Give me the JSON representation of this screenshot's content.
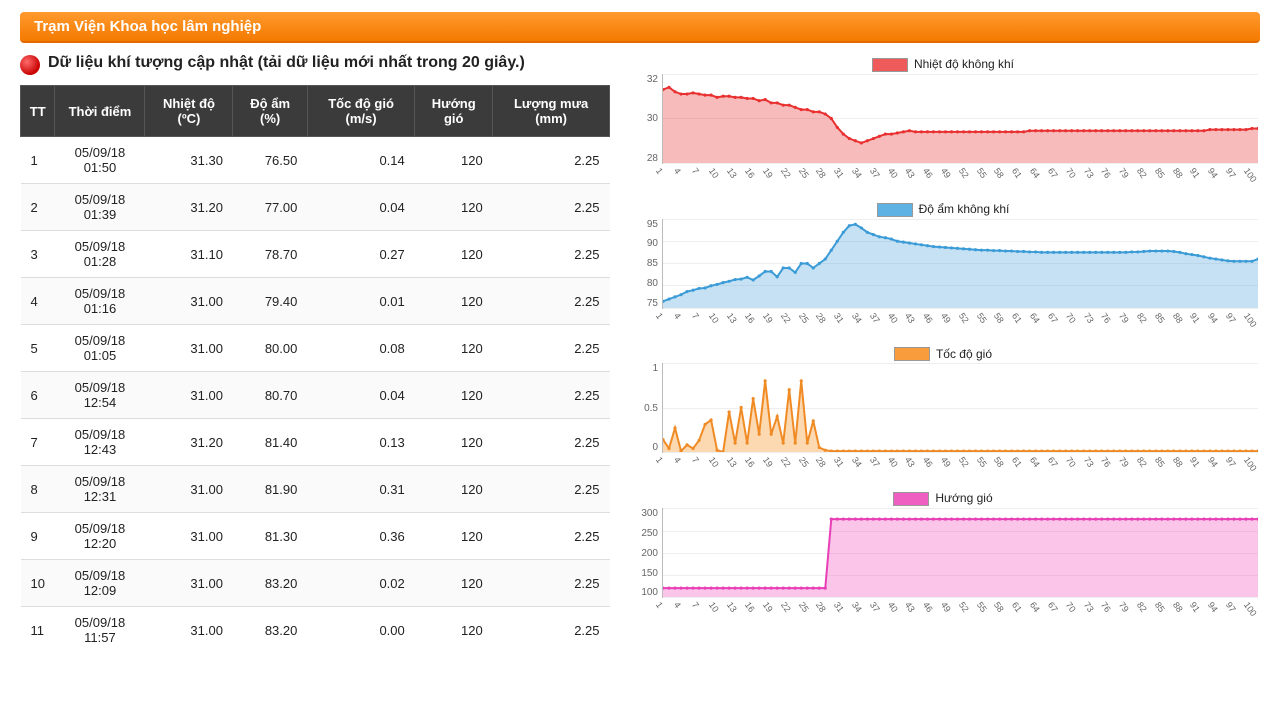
{
  "header": {
    "title": "Trạm Viện Khoa học lâm nghiệp"
  },
  "main": {
    "title": "Dữ liệu khí tượng cập nhật (tải dữ liệu mới nhất trong 20 giây.)"
  },
  "table": {
    "columns": [
      "TT",
      "Thời điểm",
      "Nhiệt độ (ºC)",
      "Độ ẩm (%)",
      "Tốc độ gió (m/s)",
      "Hướng gió",
      "Lượng mưa (mm)"
    ],
    "rows": [
      [
        "1",
        "05/09/18 01:50",
        "31.30",
        "76.50",
        "0.14",
        "120",
        "2.25"
      ],
      [
        "2",
        "05/09/18 01:39",
        "31.20",
        "77.00",
        "0.04",
        "120",
        "2.25"
      ],
      [
        "3",
        "05/09/18 01:28",
        "31.10",
        "78.70",
        "0.27",
        "120",
        "2.25"
      ],
      [
        "4",
        "05/09/18 01:16",
        "31.00",
        "79.40",
        "0.01",
        "120",
        "2.25"
      ],
      [
        "5",
        "05/09/18 01:05",
        "31.00",
        "80.00",
        "0.08",
        "120",
        "2.25"
      ],
      [
        "6",
        "05/09/18 12:54",
        "31.00",
        "80.70",
        "0.04",
        "120",
        "2.25"
      ],
      [
        "7",
        "05/09/18 12:43",
        "31.20",
        "81.40",
        "0.13",
        "120",
        "2.25"
      ],
      [
        "8",
        "05/09/18 12:31",
        "31.00",
        "81.90",
        "0.31",
        "120",
        "2.25"
      ],
      [
        "9",
        "05/09/18 12:20",
        "31.00",
        "81.30",
        "0.36",
        "120",
        "2.25"
      ],
      [
        "10",
        "05/09/18 12:09",
        "31.00",
        "83.20",
        "0.02",
        "120",
        "2.25"
      ],
      [
        "11",
        "05/09/18 11:57",
        "31.00",
        "83.20",
        "0.00",
        "120",
        "2.25"
      ]
    ]
  },
  "xaxis_ticks": [
    1,
    4,
    7,
    10,
    13,
    16,
    19,
    22,
    25,
    28,
    31,
    34,
    37,
    40,
    43,
    46,
    49,
    52,
    55,
    58,
    61,
    64,
    67,
    70,
    73,
    76,
    79,
    82,
    85,
    88,
    91,
    94,
    97,
    100
  ],
  "charts": [
    {
      "id": "temp",
      "legend": "Nhiệt độ không khí",
      "stroke": "#e83030",
      "fill": "rgba(232,60,60,0.35)",
      "swatch": "#ef5a5a",
      "height": 90,
      "ylim": [
        28,
        32
      ],
      "yticks": [
        32,
        30,
        28
      ],
      "values": [
        31.3,
        31.4,
        31.2,
        31.1,
        31.1,
        31.15,
        31.1,
        31.05,
        31.05,
        30.95,
        31.0,
        31.0,
        30.95,
        30.95,
        30.9,
        30.9,
        30.8,
        30.85,
        30.7,
        30.7,
        30.6,
        30.6,
        30.5,
        30.4,
        30.4,
        30.3,
        30.3,
        30.2,
        30.0,
        29.6,
        29.3,
        29.1,
        29.0,
        28.9,
        29.0,
        29.1,
        29.2,
        29.3,
        29.3,
        29.35,
        29.4,
        29.45,
        29.4,
        29.4,
        29.4,
        29.4,
        29.4,
        29.4,
        29.4,
        29.4,
        29.4,
        29.4,
        29.4,
        29.4,
        29.4,
        29.4,
        29.4,
        29.4,
        29.4,
        29.4,
        29.4,
        29.45,
        29.45,
        29.45,
        29.45,
        29.45,
        29.45,
        29.45,
        29.45,
        29.45,
        29.45,
        29.45,
        29.45,
        29.45,
        29.45,
        29.45,
        29.45,
        29.45,
        29.45,
        29.45,
        29.45,
        29.45,
        29.45,
        29.45,
        29.45,
        29.45,
        29.45,
        29.45,
        29.45,
        29.45,
        29.45,
        29.5,
        29.5,
        29.5,
        29.5,
        29.5,
        29.5,
        29.5,
        29.55,
        29.55
      ]
    },
    {
      "id": "humidity",
      "legend": "Độ ẩm không khí",
      "stroke": "#3a9bd6",
      "fill": "rgba(90,170,220,0.35)",
      "swatch": "#5fb3e4",
      "height": 90,
      "ylim": [
        75,
        95
      ],
      "yticks": [
        95,
        90,
        85,
        80,
        75
      ],
      "values": [
        76.5,
        77,
        77.5,
        78,
        78.7,
        79,
        79.4,
        79.5,
        80,
        80.3,
        80.7,
        81,
        81.4,
        81.5,
        81.9,
        81.3,
        82.2,
        83.2,
        83.2,
        82,
        84,
        84,
        83,
        85,
        85,
        84,
        85,
        86,
        88,
        90,
        92,
        93.5,
        93.8,
        93,
        92,
        91.5,
        91,
        90.8,
        90.5,
        90,
        89.8,
        89.6,
        89.4,
        89.2,
        89,
        88.8,
        88.7,
        88.6,
        88.5,
        88.4,
        88.3,
        88.2,
        88.1,
        88,
        88,
        87.9,
        87.9,
        87.8,
        87.8,
        87.7,
        87.7,
        87.6,
        87.6,
        87.5,
        87.5,
        87.5,
        87.5,
        87.5,
        87.5,
        87.5,
        87.5,
        87.5,
        87.5,
        87.5,
        87.5,
        87.5,
        87.5,
        87.5,
        87.6,
        87.6,
        87.7,
        87.8,
        87.8,
        87.8,
        87.8,
        87.7,
        87.5,
        87.2,
        87,
        86.8,
        86.5,
        86.2,
        86,
        85.8,
        85.6,
        85.5,
        85.5,
        85.5,
        85.5,
        86
      ]
    },
    {
      "id": "wind",
      "legend": "Tốc độ gió",
      "stroke": "#f08a24",
      "fill": "rgba(248,160,60,0.4)",
      "swatch": "#f89c3c",
      "height": 90,
      "ylim": [
        0,
        1.0
      ],
      "yticks": [
        1.0,
        0.5,
        0
      ],
      "values": [
        0.14,
        0.04,
        0.27,
        0.01,
        0.08,
        0.04,
        0.13,
        0.31,
        0.36,
        0.02,
        0.0,
        0.45,
        0.1,
        0.5,
        0.1,
        0.6,
        0.2,
        0.8,
        0.2,
        0.4,
        0.1,
        0.7,
        0.1,
        0.8,
        0.1,
        0.35,
        0.05,
        0.02,
        0.01,
        0.01,
        0.01,
        0.01,
        0.01,
        0.01,
        0.01,
        0.01,
        0.01,
        0.01,
        0.01,
        0.01,
        0.01,
        0.01,
        0.01,
        0.01,
        0.01,
        0.01,
        0.01,
        0.01,
        0.01,
        0.01,
        0.01,
        0.01,
        0.01,
        0.01,
        0.01,
        0.01,
        0.01,
        0.01,
        0.01,
        0.01,
        0.01,
        0.01,
        0.01,
        0.01,
        0.01,
        0.01,
        0.01,
        0.01,
        0.01,
        0.01,
        0.01,
        0.01,
        0.01,
        0.01,
        0.01,
        0.01,
        0.01,
        0.01,
        0.01,
        0.01,
        0.01,
        0.01,
        0.01,
        0.01,
        0.01,
        0.01,
        0.01,
        0.01,
        0.01,
        0.01,
        0.01,
        0.01,
        0.01,
        0.01,
        0.01,
        0.01,
        0.01,
        0.01,
        0.01,
        0.01
      ]
    },
    {
      "id": "direction",
      "legend": "Hướng gió",
      "stroke": "#e83fb6",
      "fill": "rgba(240,90,190,0.35)",
      "swatch": "#ef5ec1",
      "height": 90,
      "ylim": [
        100,
        300
      ],
      "yticks": [
        300,
        250,
        200,
        150,
        100
      ],
      "values": [
        120,
        120,
        120,
        120,
        120,
        120,
        120,
        120,
        120,
        120,
        120,
        120,
        120,
        120,
        120,
        120,
        120,
        120,
        120,
        120,
        120,
        120,
        120,
        120,
        120,
        120,
        120,
        120,
        275,
        275,
        275,
        275,
        275,
        275,
        275,
        275,
        275,
        275,
        275,
        275,
        275,
        275,
        275,
        275,
        275,
        275,
        275,
        275,
        275,
        275,
        275,
        275,
        275,
        275,
        275,
        275,
        275,
        275,
        275,
        275,
        275,
        275,
        275,
        275,
        275,
        275,
        275,
        275,
        275,
        275,
        275,
        275,
        275,
        275,
        275,
        275,
        275,
        275,
        275,
        275,
        275,
        275,
        275,
        275,
        275,
        275,
        275,
        275,
        275,
        275,
        275,
        275,
        275,
        275,
        275,
        275,
        275,
        275,
        275,
        275
      ]
    }
  ]
}
